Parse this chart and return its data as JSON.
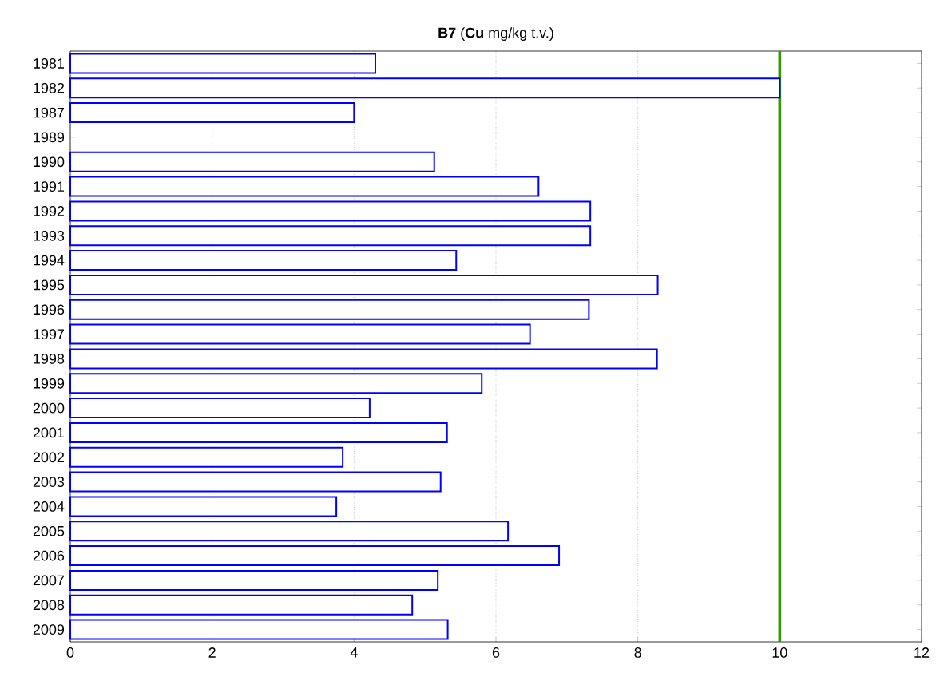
{
  "chart_data": {
    "type": "bar",
    "orientation": "horizontal",
    "title": "**B7** (**Cu** mg/kg t.v.)",
    "categories": [
      "1981",
      "1982",
      "1987",
      "1989",
      "1990",
      "1991",
      "1992",
      "1993",
      "1994",
      "1995",
      "1996",
      "1997",
      "1998",
      "1999",
      "2000",
      "2001",
      "2002",
      "2003",
      "2004",
      "2005",
      "2006",
      "2007",
      "2008",
      "2009"
    ],
    "values": [
      4.3,
      10.0,
      4.0,
      null,
      5.13,
      6.6,
      7.33,
      7.33,
      5.44,
      8.28,
      7.31,
      6.48,
      8.27,
      5.8,
      4.22,
      5.31,
      3.84,
      5.22,
      3.75,
      6.17,
      6.89,
      5.18,
      4.82,
      5.32
    ],
    "color": "#0000ff",
    "xlim": [
      0,
      12
    ],
    "xticks": [
      0,
      2,
      4,
      6,
      8,
      10,
      12
    ],
    "grid": "x",
    "ref_lines": [
      {
        "axis": "x",
        "value": 10,
        "color": "#339900"
      }
    ]
  }
}
